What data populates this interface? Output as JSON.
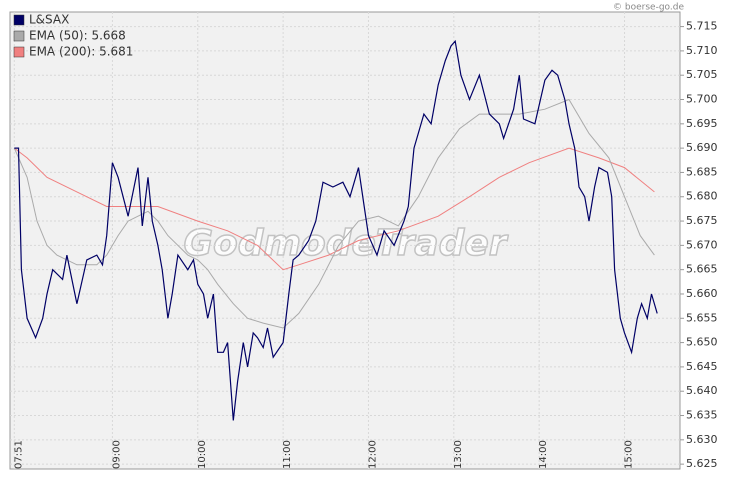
{
  "chart_data": {
    "type": "line",
    "source": "© boerse-go.de",
    "watermark": "GodmodeTrader",
    "x": [
      "07:51",
      "07:54",
      "07:56",
      "08:00",
      "08:06",
      "08:11",
      "08:14",
      "08:18",
      "08:25",
      "08:28",
      "08:35",
      "08:42",
      "08:49",
      "08:53",
      "08:56",
      "09:00",
      "09:04",
      "09:11",
      "09:18",
      "09:21",
      "09:25",
      "09:28",
      "09:32",
      "09:35",
      "09:39",
      "09:42",
      "09:46",
      "09:53",
      "09:57",
      "10:00",
      "10:04",
      "10:07",
      "10:11",
      "10:14",
      "10:18",
      "10:21",
      "10:25",
      "10:28",
      "10:32",
      "10:35",
      "10:39",
      "10:42",
      "10:46",
      "10:49",
      "10:53",
      "11:00",
      "11:04",
      "11:07",
      "11:11",
      "11:18",
      "11:23",
      "11:28",
      "11:35",
      "11:42",
      "11:47",
      "11:53",
      "11:57",
      "12:00",
      "12:06",
      "12:11",
      "12:18",
      "12:25",
      "12:28",
      "12:32",
      "12:39",
      "12:44",
      "12:49",
      "12:54",
      "12:58",
      "13:01",
      "13:05",
      "13:11",
      "13:18",
      "13:25",
      "13:32",
      "13:35",
      "13:42",
      "13:46",
      "13:49",
      "13:57",
      "14:04",
      "14:09",
      "14:13",
      "14:18",
      "14:21",
      "14:25",
      "14:28",
      "14:32",
      "14:35",
      "14:39",
      "14:42",
      "14:48",
      "14:51",
      "14:53",
      "14:57",
      "15:00",
      "15:05",
      "15:09",
      "15:12",
      "15:16",
      "15:19",
      "15:23"
    ],
    "series": [
      {
        "name": "L&SAX",
        "color": "#000066",
        "values": [
          5.69,
          5.69,
          5.665,
          5.655,
          5.651,
          5.655,
          5.66,
          5.665,
          5.663,
          5.668,
          5.658,
          5.667,
          5.668,
          5.666,
          5.672,
          5.687,
          5.684,
          5.676,
          5.686,
          5.674,
          5.684,
          5.675,
          5.67,
          5.665,
          5.655,
          5.66,
          5.668,
          5.665,
          5.667,
          5.662,
          5.66,
          5.655,
          5.66,
          5.648,
          5.648,
          5.65,
          5.634,
          5.642,
          5.65,
          5.645,
          5.652,
          5.651,
          5.649,
          5.653,
          5.647,
          5.65,
          5.66,
          5.667,
          5.668,
          5.671,
          5.675,
          5.683,
          5.682,
          5.683,
          5.68,
          5.686,
          5.678,
          5.672,
          5.668,
          5.673,
          5.67,
          5.675,
          5.678,
          5.69,
          5.697,
          5.695,
          5.703,
          5.708,
          5.711,
          5.712,
          5.705,
          5.7,
          5.705,
          5.697,
          5.695,
          5.692,
          5.698,
          5.705,
          5.696,
          5.695,
          5.704,
          5.706,
          5.705,
          5.7,
          5.695,
          5.69,
          5.682,
          5.68,
          5.675,
          5.682,
          5.686,
          5.685,
          5.68,
          5.665,
          5.655,
          5.652,
          5.648,
          5.655,
          5.658,
          5.655,
          5.66,
          5.656
        ]
      },
      {
        "name": "EMA (50): 5.668",
        "color": "#aaaaaa",
        "x": [
          "07:51",
          "08:00",
          "08:07",
          "08:14",
          "08:21",
          "08:35",
          "08:49",
          "08:56",
          "09:04",
          "09:11",
          "09:18",
          "09:25",
          "09:32",
          "09:39",
          "09:53",
          "10:00",
          "10:07",
          "10:14",
          "10:25",
          "10:35",
          "10:46",
          "11:00",
          "11:11",
          "11:25",
          "11:39",
          "11:53",
          "12:07",
          "12:21",
          "12:35",
          "12:49",
          "13:04",
          "13:18",
          "13:32",
          "13:46",
          "14:04",
          "14:21",
          "14:35",
          "14:49",
          "15:00",
          "15:11",
          "15:21"
        ],
        "values": [
          5.69,
          5.684,
          5.675,
          5.67,
          5.668,
          5.666,
          5.666,
          5.668,
          5.672,
          5.675,
          5.676,
          5.677,
          5.675,
          5.672,
          5.668,
          5.667,
          5.665,
          5.662,
          5.658,
          5.655,
          5.654,
          5.653,
          5.656,
          5.662,
          5.67,
          5.675,
          5.676,
          5.674,
          5.68,
          5.688,
          5.694,
          5.697,
          5.697,
          5.697,
          5.698,
          5.7,
          5.693,
          5.688,
          5.68,
          5.672,
          5.668
        ]
      },
      {
        "name": "EMA (200): 5.681",
        "color": "#f08080",
        "x": [
          "07:51",
          "08:00",
          "08:14",
          "08:35",
          "08:56",
          "09:11",
          "09:32",
          "10:00",
          "10:21",
          "10:42",
          "11:00",
          "11:11",
          "11:32",
          "11:53",
          "12:21",
          "12:49",
          "13:11",
          "13:32",
          "13:53",
          "14:21",
          "14:42",
          "15:00",
          "15:21"
        ],
        "values": [
          5.69,
          5.688,
          5.684,
          5.681,
          5.678,
          5.678,
          5.678,
          5.675,
          5.673,
          5.67,
          5.665,
          5.666,
          5.668,
          5.671,
          5.673,
          5.676,
          5.68,
          5.684,
          5.687,
          5.69,
          5.688,
          5.686,
          5.681
        ]
      }
    ],
    "xlim": [
      "07:48",
      "15:39"
    ],
    "xticks": [
      "07:51",
      "09:00",
      "10:00",
      "11:00",
      "12:00",
      "13:00",
      "14:00",
      "15:00"
    ],
    "ylim": [
      5.624,
      5.718
    ],
    "yticks": [
      5.625,
      {
        "value": 5.63,
        "label": "5.630"
      },
      5.635,
      {
        "value": 5.64,
        "label": "5.640"
      },
      5.645,
      {
        "value": 5.65,
        "label": "5.650"
      },
      5.655,
      {
        "value": 5.66,
        "label": "5.660"
      },
      5.665,
      {
        "value": 5.67,
        "label": "5.670"
      },
      5.675,
      {
        "value": 5.68,
        "label": "5.680"
      },
      5.685,
      {
        "value": 5.69,
        "label": "5.690"
      },
      5.695,
      {
        "value": 5.7,
        "label": "5.700"
      },
      5.705,
      {
        "value": 5.71,
        "label": "5.710"
      },
      5.715
    ],
    "grid": true
  }
}
